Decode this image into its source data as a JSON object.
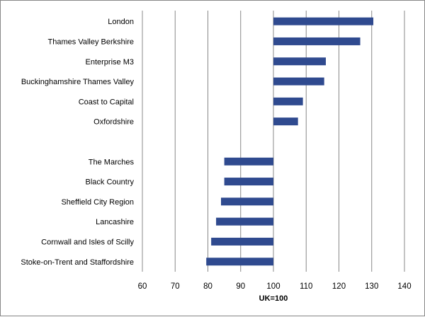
{
  "chart_data": {
    "type": "bar",
    "orientation": "horizontal",
    "xlabel": "UK=100",
    "xlim": [
      60,
      140
    ],
    "xticks": [
      60,
      70,
      80,
      90,
      100,
      110,
      120,
      130,
      140
    ],
    "baseline": 100,
    "grid": true,
    "bar_color": "#2F4A8F",
    "gridline_color": "#888888",
    "categories": [
      "London",
      "Thames Valley Berkshire",
      "Enterprise M3",
      "Buckinghamshire Thames Valley",
      "Coast to Capital",
      "Oxfordshire",
      "",
      "The Marches",
      "Black Country",
      "Sheffield City Region",
      "Lancashire",
      "Cornwall and Isles of Scilly",
      "Stoke-on-Trent and Staffordshire"
    ],
    "values": [
      130.5,
      126.5,
      116,
      115.5,
      109,
      107.5,
      null,
      85,
      85,
      84,
      82.5,
      81,
      79.5
    ]
  }
}
